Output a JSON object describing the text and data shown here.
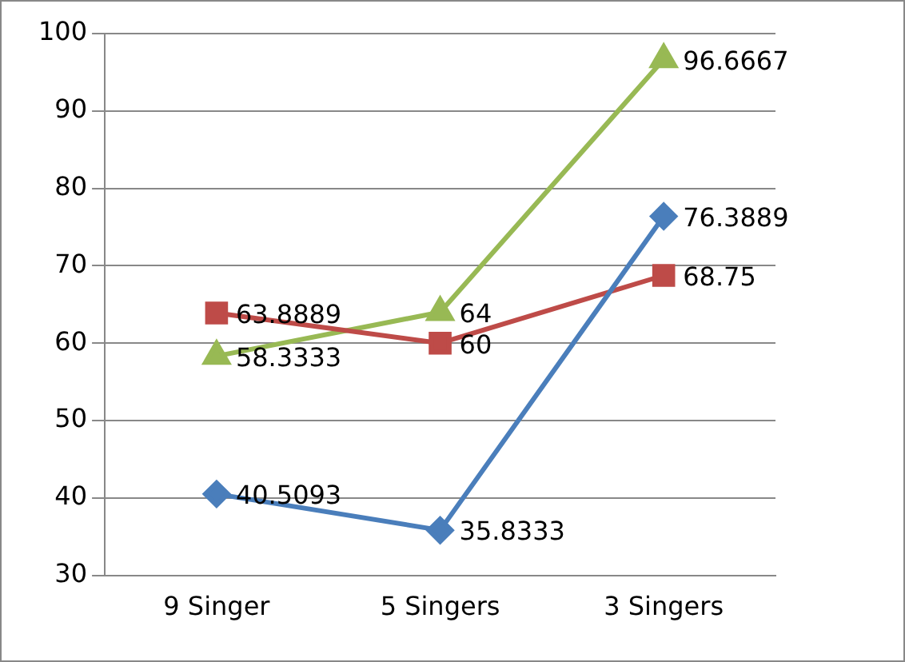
{
  "chart_data": {
    "type": "line",
    "categories": [
      "9 Singer",
      "5 Singers",
      "3 Singers"
    ],
    "series": [
      {
        "color": "#4a7ebb",
        "marker": "diamond",
        "values": [
          40.5093,
          35.8333,
          76.3889
        ]
      },
      {
        "color": "#be4b48",
        "marker": "square",
        "values": [
          63.8889,
          60,
          68.75
        ]
      },
      {
        "color": "#98b954",
        "marker": "triangle",
        "values": [
          58.3333,
          64,
          96.6667
        ]
      }
    ],
    "ylim": [
      30,
      100
    ],
    "yticks": [
      30,
      40,
      50,
      60,
      70,
      80,
      90,
      100
    ],
    "grid": "y",
    "data_labels": true,
    "legend": false
  }
}
